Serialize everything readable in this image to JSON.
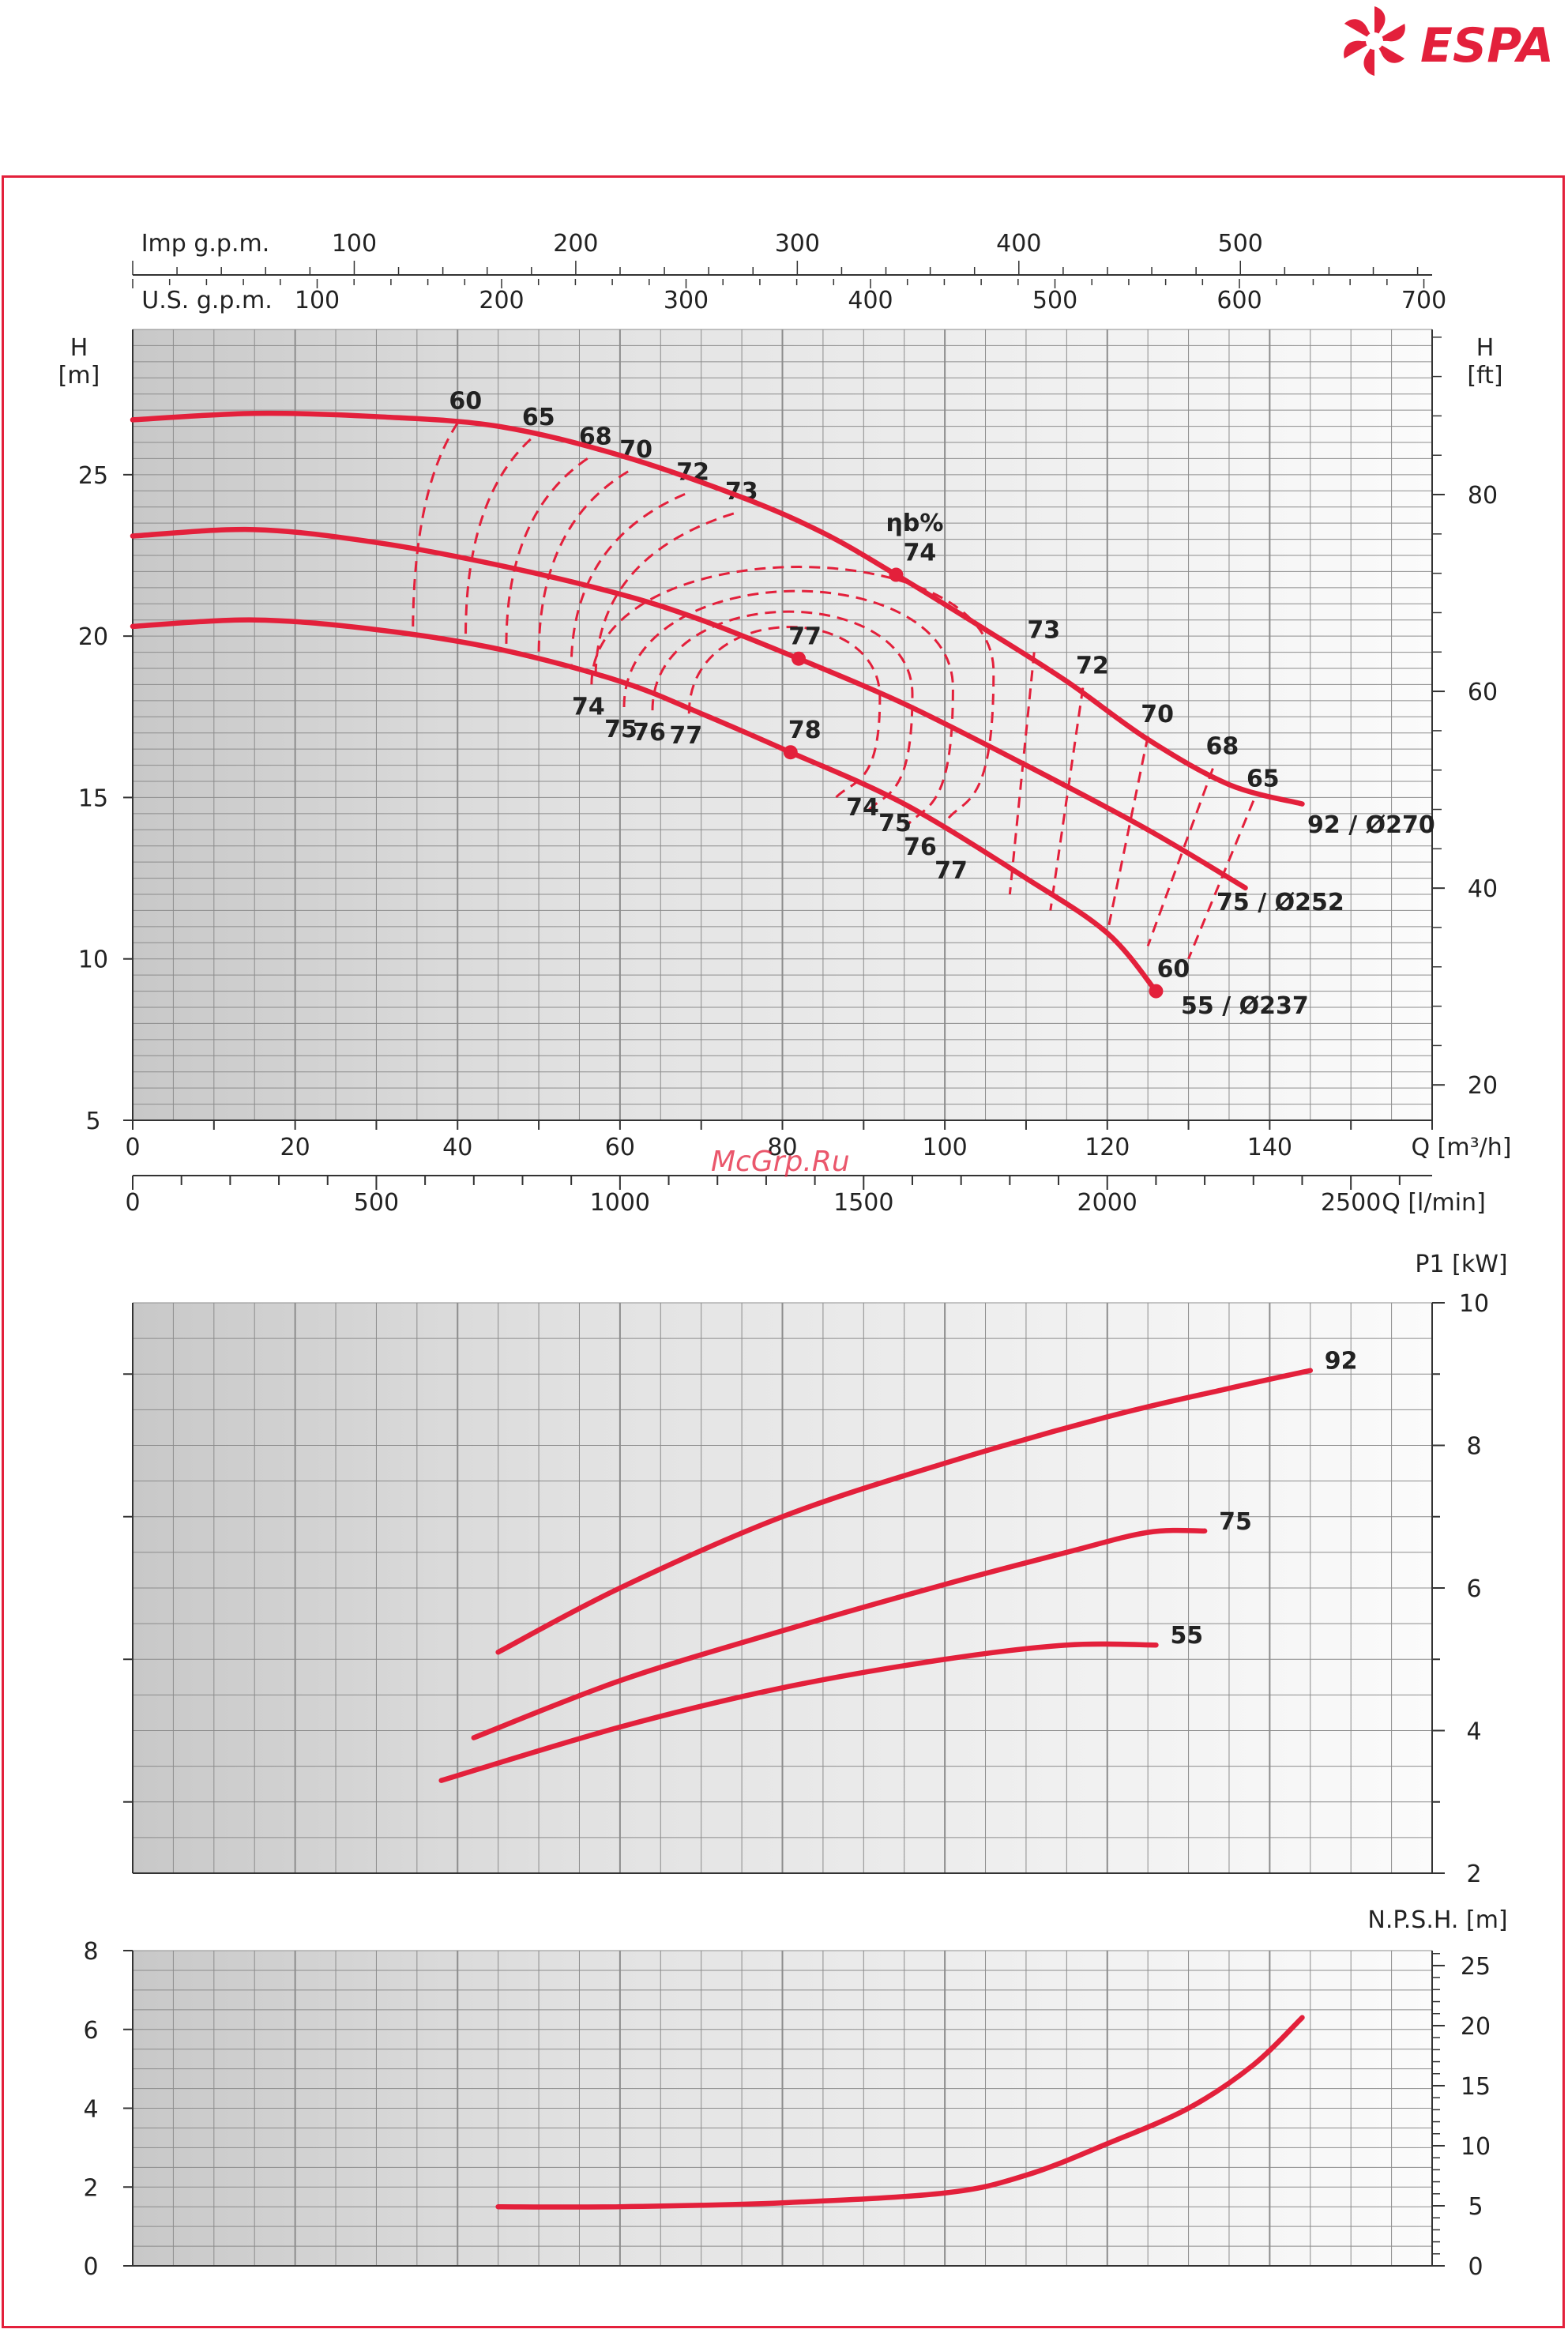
{
  "brand": {
    "name": "ESPA",
    "color": "#e3203b"
  },
  "watermark": "McGrp.Ru",
  "colors": {
    "curve": "#e3203b",
    "grid": "#8c8c8c",
    "bg_dark": "#d2d2d2",
    "bg_light": "#fbfbfb"
  },
  "chart_data": [
    {
      "type": "line",
      "id": "head",
      "xlabel": "Q [m³/h]",
      "ylabel_left": "H\n[m]",
      "ylabel_right": "H\n[ft]",
      "xlim": [
        0,
        160
      ],
      "ylim": [
        5,
        29.5
      ],
      "x_ticks": [
        0,
        20,
        40,
        60,
        80,
        100,
        120,
        140
      ],
      "y_ticks": [
        5,
        10,
        15,
        20,
        25
      ],
      "ft_ticks": [
        20,
        40,
        60,
        80
      ],
      "top_axes": [
        {
          "label": "Imp g.p.m.",
          "ticks": [
            100,
            200,
            300,
            400,
            500
          ],
          "per_m3h": 3.666
        },
        {
          "label": "U.S. g.p.m.",
          "ticks": [
            100,
            200,
            300,
            400,
            500,
            600,
            700
          ],
          "per_m3h": 4.403
        }
      ],
      "bottom_axis": {
        "label": "Q [l/min]",
        "ticks": [
          0,
          500,
          1000,
          1500,
          2000,
          2500
        ],
        "per_m3h": 16.667
      },
      "efficiency_label": "ηb%",
      "series": [
        {
          "name": "92 / Ø270",
          "x": [
            0,
            15,
            30,
            45,
            60,
            75,
            85,
            94,
            105,
            115,
            125,
            135,
            144
          ],
          "y": [
            26.7,
            26.9,
            26.8,
            26.5,
            25.6,
            24.3,
            23.2,
            21.9,
            20.2,
            18.6,
            16.8,
            15.4,
            14.8
          ]
        },
        {
          "name": "75 / Ø252",
          "x": [
            0,
            15,
            30,
            45,
            60,
            70,
            82,
            95,
            110,
            125,
            137
          ],
          "y": [
            23.1,
            23.3,
            22.9,
            22.2,
            21.3,
            20.5,
            19.3,
            17.9,
            16.0,
            14.0,
            12.2
          ]
        },
        {
          "name": "55 / Ø237",
          "x": [
            0,
            15,
            30,
            45,
            60,
            70,
            81,
            95,
            110,
            120,
            126
          ],
          "y": [
            20.3,
            20.5,
            20.2,
            19.6,
            18.6,
            17.6,
            16.4,
            14.8,
            12.5,
            10.8,
            9.0
          ]
        }
      ],
      "best_efficiency_points": [
        {
          "series": "92 / Ø270",
          "x": 94,
          "y": 21.9,
          "label": "74"
        },
        {
          "series": "75 / Ø252",
          "x": 82,
          "y": 19.3,
          "label": "77"
        },
        {
          "series": "55 / Ø237",
          "x": 81,
          "y": 16.4,
          "label": "78"
        },
        {
          "series": "55 / Ø237",
          "x": 126,
          "y": 9.0,
          "label": "60"
        }
      ],
      "efficiency_lines_left": [
        {
          "label": "60",
          "top": [
            40,
            26.6
          ],
          "bottom": [
            34.5,
            20.0
          ]
        },
        {
          "label": "65",
          "top": [
            49,
            26.1
          ],
          "bottom": [
            41,
            20.0
          ]
        },
        {
          "label": "68",
          "top": [
            56,
            25.5
          ],
          "bottom": [
            46,
            19.7
          ]
        },
        {
          "label": "70",
          "top": [
            61,
            25.1
          ],
          "bottom": [
            50,
            19.4
          ]
        },
        {
          "label": "72",
          "top": [
            68,
            24.4
          ],
          "bottom": [
            54,
            19.0
          ]
        },
        {
          "label": "73",
          "top": [
            74,
            23.8
          ],
          "bottom": [
            57,
            18.7
          ]
        }
      ],
      "efficiency_lines_right": [
        {
          "label": "73",
          "top": [
            111,
            19.5
          ],
          "bottom": [
            108,
            12.0
          ]
        },
        {
          "label": "72",
          "top": [
            117,
            18.4
          ],
          "bottom": [
            113,
            11.5
          ]
        },
        {
          "label": "70",
          "top": [
            125,
            16.9
          ],
          "bottom": [
            120,
            10.8
          ]
        },
        {
          "label": "68",
          "top": [
            133,
            15.9
          ],
          "bottom": [
            125,
            10.4
          ]
        },
        {
          "label": "65",
          "top": [
            138,
            14.9
          ],
          "bottom": [
            130,
            10.0
          ]
        }
      ],
      "efficiency_loops": [
        {
          "label_left": "74",
          "label_right": "74",
          "x_left": 56.5,
          "x_right": 106,
          "y_top": 22.8,
          "y_bottom": 15.0
        },
        {
          "label_left": "75",
          "label_right": "75",
          "x_left": 60.5,
          "x_right": 101,
          "y_top": 22.0,
          "y_bottom": 14.8
        },
        {
          "label_left": "76",
          "label_right": "76",
          "x_left": 64,
          "x_right": 96,
          "y_top": 21.2,
          "y_bottom": 15.2
        },
        {
          "label_left": "77",
          "label_right": "77",
          "x_left": 68.5,
          "x_right": 92,
          "y_top": 20.6,
          "y_bottom": 15.6
        }
      ]
    },
    {
      "type": "line",
      "id": "power",
      "ylabel_right": "P1 [kW]",
      "xlim": [
        0,
        160
      ],
      "ylim": [
        2,
        10
      ],
      "y_ticks": [
        2,
        4,
        6,
        8,
        10
      ],
      "series": [
        {
          "name": "92",
          "x": [
            45,
            60,
            80,
            100,
            120,
            135,
            145
          ],
          "y": [
            5.1,
            6.0,
            7.0,
            7.75,
            8.4,
            8.8,
            9.05
          ]
        },
        {
          "name": "75",
          "x": [
            42,
            60,
            80,
            100,
            115,
            125,
            132
          ],
          "y": [
            3.9,
            4.7,
            5.4,
            6.05,
            6.5,
            6.78,
            6.8
          ]
        },
        {
          "name": "55",
          "x": [
            38,
            60,
            80,
            100,
            115,
            126
          ],
          "y": [
            3.3,
            4.05,
            4.6,
            5.0,
            5.2,
            5.2
          ]
        }
      ]
    },
    {
      "type": "line",
      "id": "npsh",
      "ylabel_right": "N.P.S.H. [m]",
      "xlim": [
        0,
        160
      ],
      "ylim": [
        0,
        8
      ],
      "y_ticks_left": [
        0,
        2,
        4,
        6,
        8
      ],
      "ft_ticks": [
        0,
        5,
        10,
        15,
        20,
        25
      ],
      "series": [
        {
          "name": "NPSH",
          "x": [
            45,
            60,
            80,
            100,
            110,
            120,
            130,
            138,
            144
          ],
          "y": [
            1.5,
            1.5,
            1.6,
            1.85,
            2.3,
            3.1,
            4.0,
            5.1,
            6.3
          ]
        }
      ]
    }
  ]
}
